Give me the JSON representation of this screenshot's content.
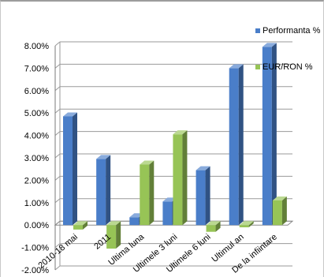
{
  "chart_data": {
    "type": "bar",
    "style": "3d-clustered-column",
    "categories": [
      "2010-18 mai",
      "2011",
      "Ultima luna",
      "Ultimele 3 luni",
      "Ultimele 6 luni",
      "Ultimul an",
      "De la infiintare"
    ],
    "series": [
      {
        "name": "Performanta %",
        "color": "#4a7ec9",
        "values": [
          4.85,
          2.95,
          0.35,
          1.05,
          2.45,
          7.0,
          7.95
        ]
      },
      {
        "name": "EUR/RON %",
        "color": "#97c456",
        "values": [
          -0.2,
          -1.05,
          2.7,
          4.05,
          -0.3,
          -0.1,
          1.1
        ]
      }
    ],
    "y_ticks": [
      "8.00%",
      "7.00%",
      "6.00%",
      "5.00%",
      "4.00%",
      "3.00%",
      "2.00%",
      "1.00%",
      "0.00%",
      "-1.00%",
      "-2.00%"
    ],
    "ylim": [
      -2,
      8
    ],
    "grid": true,
    "legend_position": "top-right"
  }
}
